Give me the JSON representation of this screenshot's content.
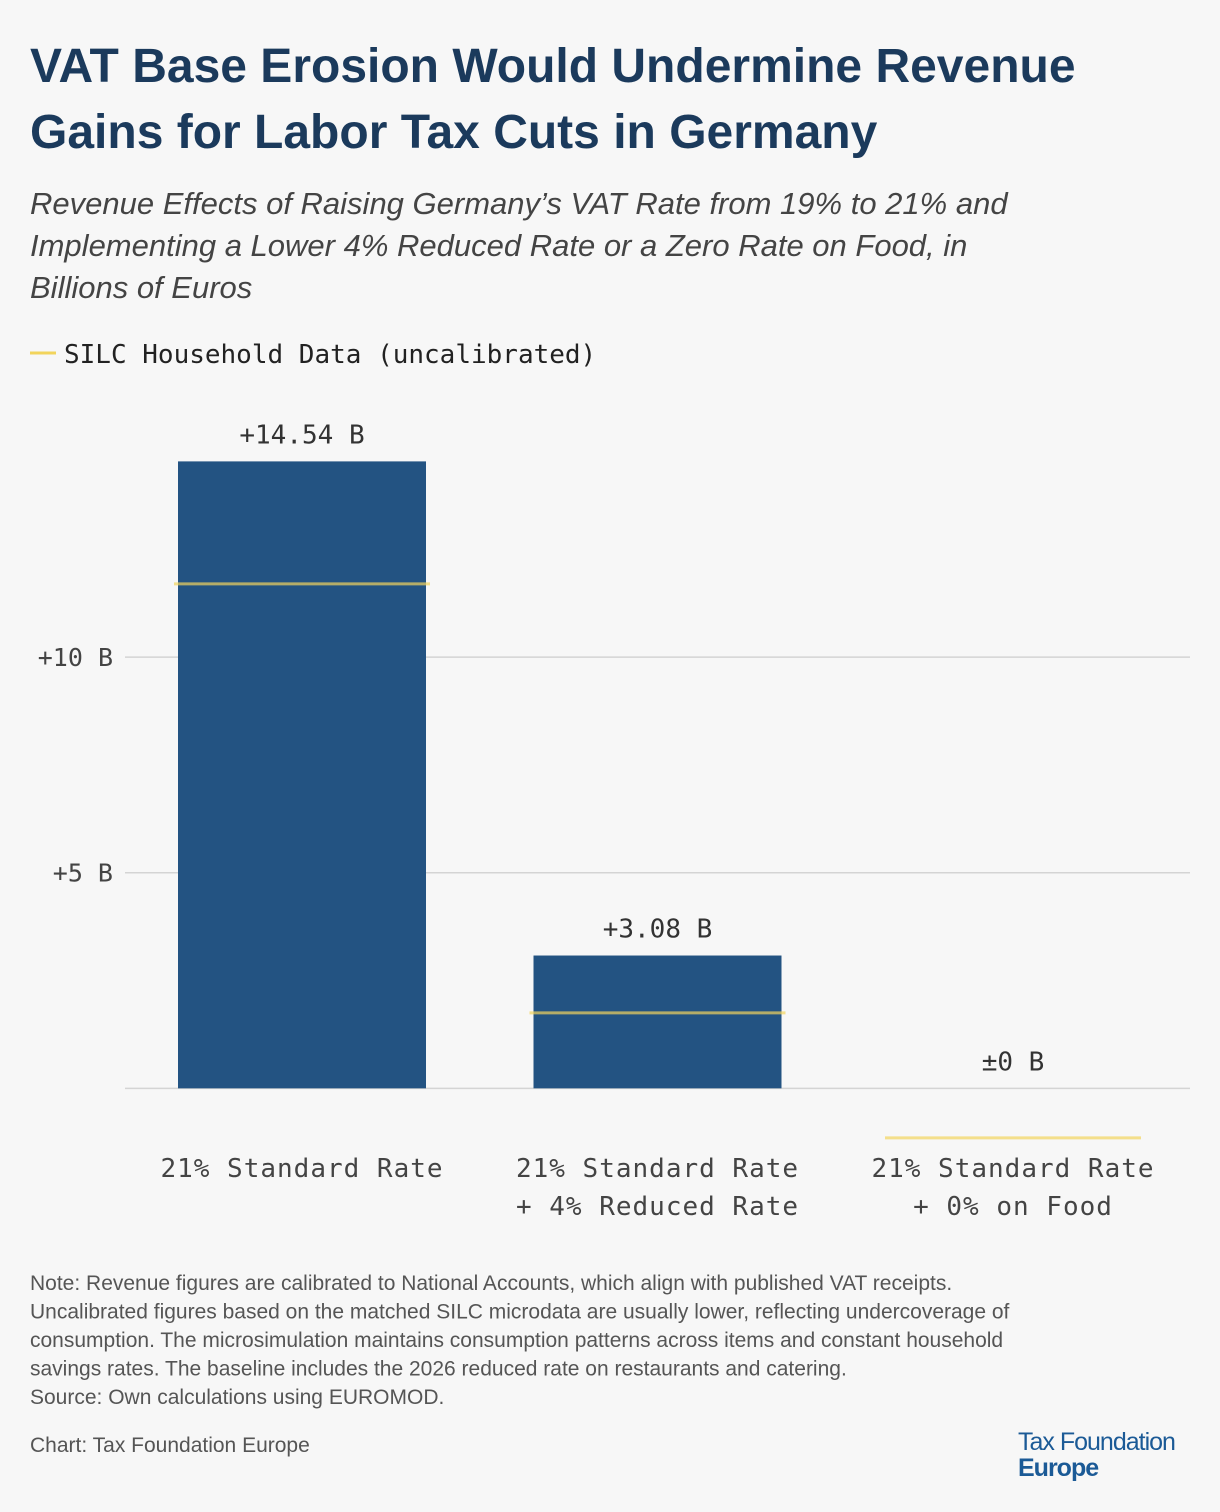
{
  "chart_data": {
    "type": "bar",
    "title_lines": [
      "VAT Base Erosion Would Undermine Revenue",
      "Gains for Labor Tax Cuts in Germany"
    ],
    "subtitle_lines": [
      "Revenue Effects of Raising Germany’s VAT Rate from 19% to 21% and",
      "Implementing a Lower 4% Reduced Rate or a Zero Rate on Food, in",
      "Billions of Euros"
    ],
    "categories": [
      [
        "21% Standard Rate"
      ],
      [
        "21% Standard Rate",
        "+ 4% Reduced Rate"
      ],
      [
        "21% Standard Rate",
        "+ 0% on Food"
      ]
    ],
    "values": [
      14.54,
      3.08,
      0
    ],
    "value_labels": [
      "+14.54 B",
      "+3.08 B",
      "±0 B"
    ],
    "color": "#235382",
    "series": [
      {
        "name": "SILC Household Data (uncalibrated)",
        "color": "#f2d45c",
        "values": [
          11.7,
          1.75,
          -1.15
        ]
      }
    ],
    "legend": "top-left",
    "ylim": [
      -1.5,
      15.5
    ],
    "yticks": [
      {
        "value": 5,
        "label": "+5 B"
      },
      {
        "value": 10,
        "label": "+10 B"
      }
    ],
    "grid": true
  },
  "footer": {
    "note_lines": [
      "Note: Revenue figures are calibrated to National Accounts, which align with published VAT receipts.",
      "Uncalibrated figures based on the matched SILC microdata are usually lower, reflecting undercoverage of",
      "consumption. The microsimulation maintains consumption patterns across items and constant household",
      "savings rates. The baseline includes the 2026 reduced rate on restaurants and catering.",
      "Source: Own calculations using EUROMOD."
    ],
    "credit": "Chart: Tax Foundation Europe",
    "logo_lines": [
      "Tax Foundation",
      "Europe"
    ]
  }
}
